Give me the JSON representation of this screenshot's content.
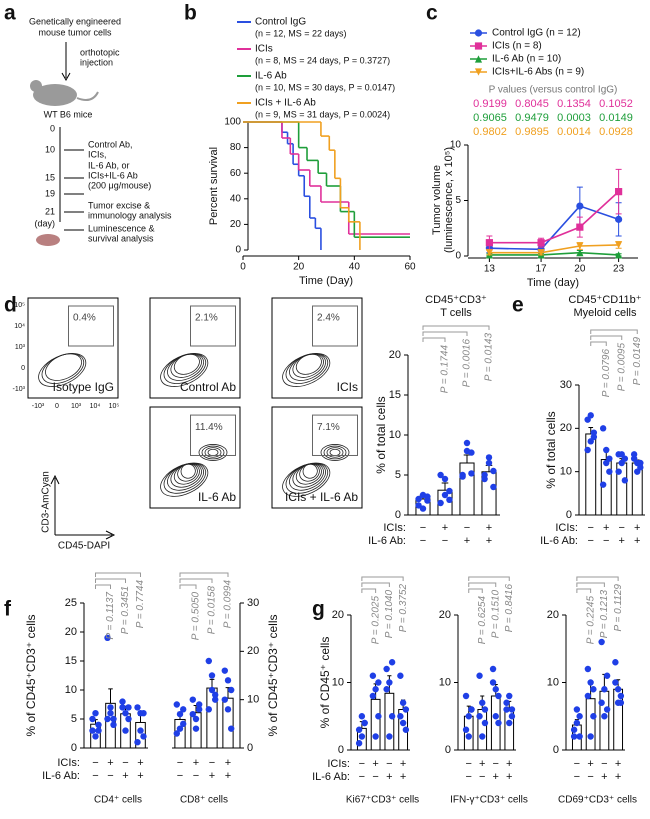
{
  "panel_labels": [
    "a",
    "b",
    "c",
    "d",
    "e",
    "f",
    "g"
  ],
  "schematic": {
    "title": [
      "Genetically engineered",
      "mouse tumor cells"
    ],
    "injection": [
      "orthotopic",
      "injection"
    ],
    "mice": "WT B6 mice",
    "days": [
      "0",
      "10",
      "15",
      "19",
      "21",
      "(day)"
    ],
    "treatment": [
      "Control Ab,",
      "ICIs,",
      "IL-6 Ab, or",
      "ICIs+IL-6 Ab",
      "(200 μg/mouse)"
    ],
    "analysis_1": [
      "Tumor excise &",
      "immunology analysis"
    ],
    "analysis_2": [
      "Luminescence &",
      "survival analysis"
    ]
  },
  "flow": {
    "plots": [
      {
        "label": "Isotype IgG",
        "gate": "0.4%"
      },
      {
        "label": "Control Ab",
        "gate": "2.1%"
      },
      {
        "label": "ICIs",
        "gate": "2.4%"
      },
      {
        "label": "IL-6 Ab",
        "gate": "11.4%"
      },
      {
        "label": "ICIs + IL-6 Ab",
        "gate": "7.1%"
      }
    ],
    "yticks": [
      "10⁵",
      "10⁴",
      "10³",
      "0",
      "-10³"
    ],
    "xticks": [
      "-10³",
      "0",
      "10³",
      "10⁴",
      "10⁵"
    ],
    "ylabel": "CD3-AmCyan",
    "xlabel": "CD45-DAPI"
  },
  "chart_data": [
    {
      "type": "step",
      "xlabel": "Time (Day)",
      "ylabel": "Percent survival",
      "xlim": [
        0,
        60
      ],
      "xticks": [
        0,
        20,
        40,
        60
      ],
      "ylim": [
        0,
        100
      ],
      "yticks": [
        0,
        20,
        40,
        60,
        80,
        100
      ],
      "series": [
        {
          "name": "Control IgG",
          "stats": "(n = 12, MS = 22 days)",
          "color": "#2a4fe0",
          "x": [
            0,
            14,
            16,
            18,
            20,
            22,
            24,
            26,
            28
          ],
          "values": [
            100,
            92,
            83,
            67,
            58,
            42,
            25,
            17,
            0
          ]
        },
        {
          "name": "ICIs",
          "stats": "(n = 8, MS = 24 days, P = 0.3727)",
          "color": "#e0309a",
          "x": [
            0,
            14,
            17,
            20,
            24,
            28,
            38,
            60
          ],
          "values": [
            100,
            87.5,
            75,
            62.5,
            50,
            37.5,
            12.5,
            12.5
          ]
        },
        {
          "name": "IL-6 Ab",
          "stats": "(n = 10, MS = 30 days, P = 0.0147)",
          "color": "#1e9e3a",
          "x": [
            0,
            20,
            23,
            27,
            30,
            35,
            40,
            60
          ],
          "values": [
            100,
            80,
            70,
            60,
            50,
            30,
            10,
            10
          ]
        },
        {
          "name": "ICIs + IL-6 Ab",
          "stats": "(n = 9, MS = 31 days, P = 0.0024)",
          "color": "#f0a020",
          "x": [
            0,
            28,
            31,
            33,
            35,
            38,
            42
          ],
          "values": [
            100,
            89,
            78,
            56,
            33,
            22,
            0
          ]
        }
      ]
    },
    {
      "type": "line",
      "xlabel": "Time (day)",
      "ylabel": [
        "Tumor volume",
        "(luminescence, x 10⁵)"
      ],
      "p_title": "P values (versus control IgG)",
      "x": [
        13,
        17,
        20,
        23
      ],
      "xlim": [
        11.5,
        24.5
      ],
      "xticks": [
        13,
        17,
        20,
        23
      ],
      "ylim": [
        0,
        10
      ],
      "yticks": [
        0,
        5,
        10
      ],
      "series": [
        {
          "name": "Control IgG (n = 12)",
          "color": "#2a4fe0",
          "marker": "circle",
          "values": [
            0.7,
            0.6,
            4.5,
            3.3
          ],
          "errors": [
            0.4,
            0.3,
            1.7,
            1.5
          ]
        },
        {
          "name": "ICIs (n = 8)",
          "color": "#e0309a",
          "marker": "square",
          "values": [
            1.2,
            1.2,
            2.6,
            5.8
          ],
          "errors": [
            0.6,
            0.4,
            0.9,
            2.0
          ],
          "p_values": [
            "0.9199",
            "0.8045",
            "0.1354",
            "0.1052"
          ]
        },
        {
          "name": "IL-6 Ab (n = 10)",
          "color": "#1e9e3a",
          "marker": "triangle",
          "values": [
            0.1,
            0.1,
            0.3,
            0.1
          ],
          "errors": [
            0.1,
            0.1,
            0.2,
            0.1
          ],
          "p_values": [
            "0.9065",
            "0.9479",
            "0.0003",
            "0.0149"
          ]
        },
        {
          "name": "ICIs+IL-6 Abs (n = 9)",
          "color": "#f0a020",
          "marker": "triangle-down",
          "values": [
            0.3,
            0.3,
            0.9,
            1.0
          ],
          "errors": [
            0.2,
            0.2,
            0.3,
            0.3
          ],
          "p_values": [
            "0.9802",
            "0.9895",
            "0.0014",
            "0.0928"
          ]
        }
      ]
    },
    {
      "type": "bar",
      "title": [
        "CD45⁺CD3⁺",
        "T cells"
      ],
      "ylabel": "% of total cells",
      "ylim": [
        0,
        20
      ],
      "yticks": [
        0,
        5,
        10,
        15,
        20
      ],
      "color": "#1f3fe6",
      "values": [
        2.0,
        3.1,
        6.5,
        5.4
      ],
      "errors": [
        0.4,
        0.9,
        1.0,
        0.8
      ],
      "points": [
        [
          1.2,
          2.5,
          1.8,
          2.0,
          0.8,
          2.3
        ],
        [
          1.5,
          4.5,
          3.0,
          5.0,
          2.5,
          1.9
        ],
        [
          5.0,
          8.0,
          7.8,
          4.8,
          9.0,
          5.2
        ],
        [
          5.0,
          7.2,
          3.5,
          4.5,
          6.5,
          5.5
        ]
      ],
      "p_values": [
        "P = 0.1744",
        "P = 0.0016",
        "P = 0.0143"
      ],
      "groups": [
        {
          "name": "ICIs:",
          "signs": [
            "−",
            "+",
            "−",
            "+"
          ]
        },
        {
          "name": "IL-6 Ab:",
          "signs": [
            "−",
            "−",
            "+",
            "+"
          ]
        }
      ]
    },
    {
      "type": "bar",
      "title": [
        "CD45⁺CD11b⁺",
        "Myeloid cells"
      ],
      "ylabel": "% of total cells",
      "ylim": [
        0,
        30
      ],
      "yticks": [
        0,
        10,
        20,
        30
      ],
      "color": "#1f3fe6",
      "values": [
        18.7,
        12.8,
        12.0,
        12.0
      ],
      "errors": [
        1.5,
        2.5,
        1.0,
        0.7
      ],
      "points": [
        [
          22,
          23,
          18,
          15,
          17,
          19
        ],
        [
          20,
          15,
          10,
          7,
          12,
          13
        ],
        [
          14,
          12,
          8,
          10,
          14,
          13
        ],
        [
          14,
          12,
          11,
          13,
          10,
          12
        ]
      ],
      "p_values": [
        "P = 0.0796",
        "P = 0.0095",
        "P = 0.0149"
      ],
      "groups": [
        {
          "name": "ICIs:",
          "signs": [
            "−",
            "+",
            "−",
            "+"
          ]
        },
        {
          "name": "IL-6 Ab:",
          "signs": [
            "−",
            "−",
            "+",
            "+"
          ]
        }
      ]
    },
    {
      "type": "bar",
      "xlabel": "CD4⁺ cells",
      "ylabel": "% of CD45⁺CD3⁺ cells",
      "ylim": [
        0,
        25
      ],
      "yticks": [
        0,
        5,
        10,
        15,
        20,
        25
      ],
      "color": "#1f3fe6",
      "values": [
        4.1,
        7.7,
        5.9,
        4.4
      ],
      "errors": [
        0.8,
        2.5,
        1.3,
        1.2
      ],
      "points": [
        [
          5,
          2,
          4,
          3,
          6,
          3
        ],
        [
          19,
          6,
          4,
          5,
          7,
          5
        ],
        [
          8,
          3,
          5,
          7,
          6,
          7
        ],
        [
          7,
          3,
          2,
          1,
          6,
          6
        ]
      ],
      "p_values": [
        "P = 0.1137",
        "P = 0.3451",
        "P = 0.7744"
      ],
      "groups": [
        {
          "name": "ICIs:",
          "signs": [
            "−",
            "+",
            "−",
            "+"
          ]
        },
        {
          "name": "IL-6 Ab:",
          "signs": [
            "−",
            "−",
            "+",
            "+"
          ]
        }
      ]
    },
    {
      "type": "bar",
      "xlabel": "CD8⁺ cells",
      "ylabel": "% of CD45⁺CD3⁺ cells",
      "axis_side": "right",
      "ylim": [
        0,
        30
      ],
      "yticks": [
        0,
        10,
        20,
        30
      ],
      "color": "#1f3fe6",
      "values": [
        5.9,
        7.3,
        12.4,
        10.3
      ],
      "errors": [
        1.5,
        1.5,
        1.8,
        2.2
      ],
      "points": [
        [
          3,
          4,
          5,
          9,
          7,
          8
        ],
        [
          7,
          6,
          9,
          10,
          4,
          8
        ],
        [
          18,
          15,
          10,
          8,
          12,
          11
        ],
        [
          16,
          14,
          4,
          10,
          8,
          12
        ]
      ],
      "p_values": [
        "P = 0.5050",
        "P = 0.0158",
        "P = 0.0994"
      ],
      "groups": [
        {
          "signs": [
            "−",
            "+",
            "−",
            "+"
          ]
        },
        {
          "signs": [
            "−",
            "−",
            "+",
            "+"
          ]
        }
      ]
    },
    {
      "type": "bar",
      "xlabel": "Ki67⁺CD3⁺ cells",
      "ylabel": "% of CD45⁺ cells",
      "ylim": [
        0,
        20
      ],
      "yticks": [
        0,
        10,
        20
      ],
      "color": "#1f3fe6",
      "values": [
        3.2,
        7.5,
        8.4,
        6.0
      ],
      "errors": [
        1.0,
        2.3,
        2.6,
        1.4
      ],
      "points": [
        [
          1,
          2,
          4,
          3,
          5,
          4
        ],
        [
          11,
          2,
          5,
          8,
          9,
          10
        ],
        [
          12,
          2,
          5,
          9,
          10,
          13
        ],
        [
          11,
          4,
          6,
          5,
          7,
          3
        ]
      ],
      "p_values": [
        "P = 0.2025",
        "P = 0.1040",
        "P = 0.3752"
      ],
      "groups": [
        {
          "name": "ICIs:",
          "signs": [
            "−",
            "+",
            "−",
            "+"
          ]
        },
        {
          "name": "IL-6 Ab:",
          "signs": [
            "−",
            "−",
            "+",
            "+"
          ]
        }
      ]
    },
    {
      "type": "bar",
      "xlabel": "IFN-γ⁺CD3⁺ cells",
      "ylim": [
        0,
        20
      ],
      "yticks": [
        0,
        10,
        20
      ],
      "color": "#1f3fe6",
      "values": [
        5.0,
        6.0,
        8.0,
        6.0
      ],
      "errors": [
        1.5,
        2.0,
        1.7,
        1.2
      ],
      "points": [
        [
          3,
          2,
          6,
          8,
          5,
          6
        ],
        [
          11,
          2,
          4,
          5,
          7,
          6
        ],
        [
          12,
          5,
          4,
          10,
          9,
          8
        ],
        [
          7,
          4,
          5,
          6,
          8,
          6
        ]
      ],
      "p_values": [
        "P = 0.6254",
        "P = 0.1510",
        "P = 0.8416"
      ],
      "groups": [
        {
          "signs": [
            "−",
            "+",
            "−",
            "+"
          ]
        },
        {
          "signs": [
            "−",
            "−",
            "+",
            "+"
          ]
        }
      ]
    },
    {
      "type": "bar",
      "xlabel": "CD69⁺CD3⁺ cells",
      "ylim": [
        0,
        20
      ],
      "yticks": [
        0,
        10,
        20
      ],
      "color": "#1f3fe6",
      "values": [
        3.7,
        7.6,
        8.7,
        9.0
      ],
      "errors": [
        0.8,
        2.2,
        2.5,
        1.4
      ],
      "points": [
        [
          2,
          4,
          5,
          3,
          6,
          2
        ],
        [
          12,
          2,
          5,
          8,
          10,
          9
        ],
        [
          16,
          5,
          6,
          7,
          9,
          11
        ],
        [
          13,
          7,
          8,
          10,
          9,
          7
        ]
      ],
      "p_values": [
        "P = 0.2245",
        "P = 0.1213",
        "P = 0.1129"
      ],
      "groups": [
        {
          "signs": [
            "−",
            "+",
            "−",
            "+"
          ]
        },
        {
          "signs": [
            "−",
            "−",
            "+",
            "+"
          ]
        }
      ]
    }
  ]
}
